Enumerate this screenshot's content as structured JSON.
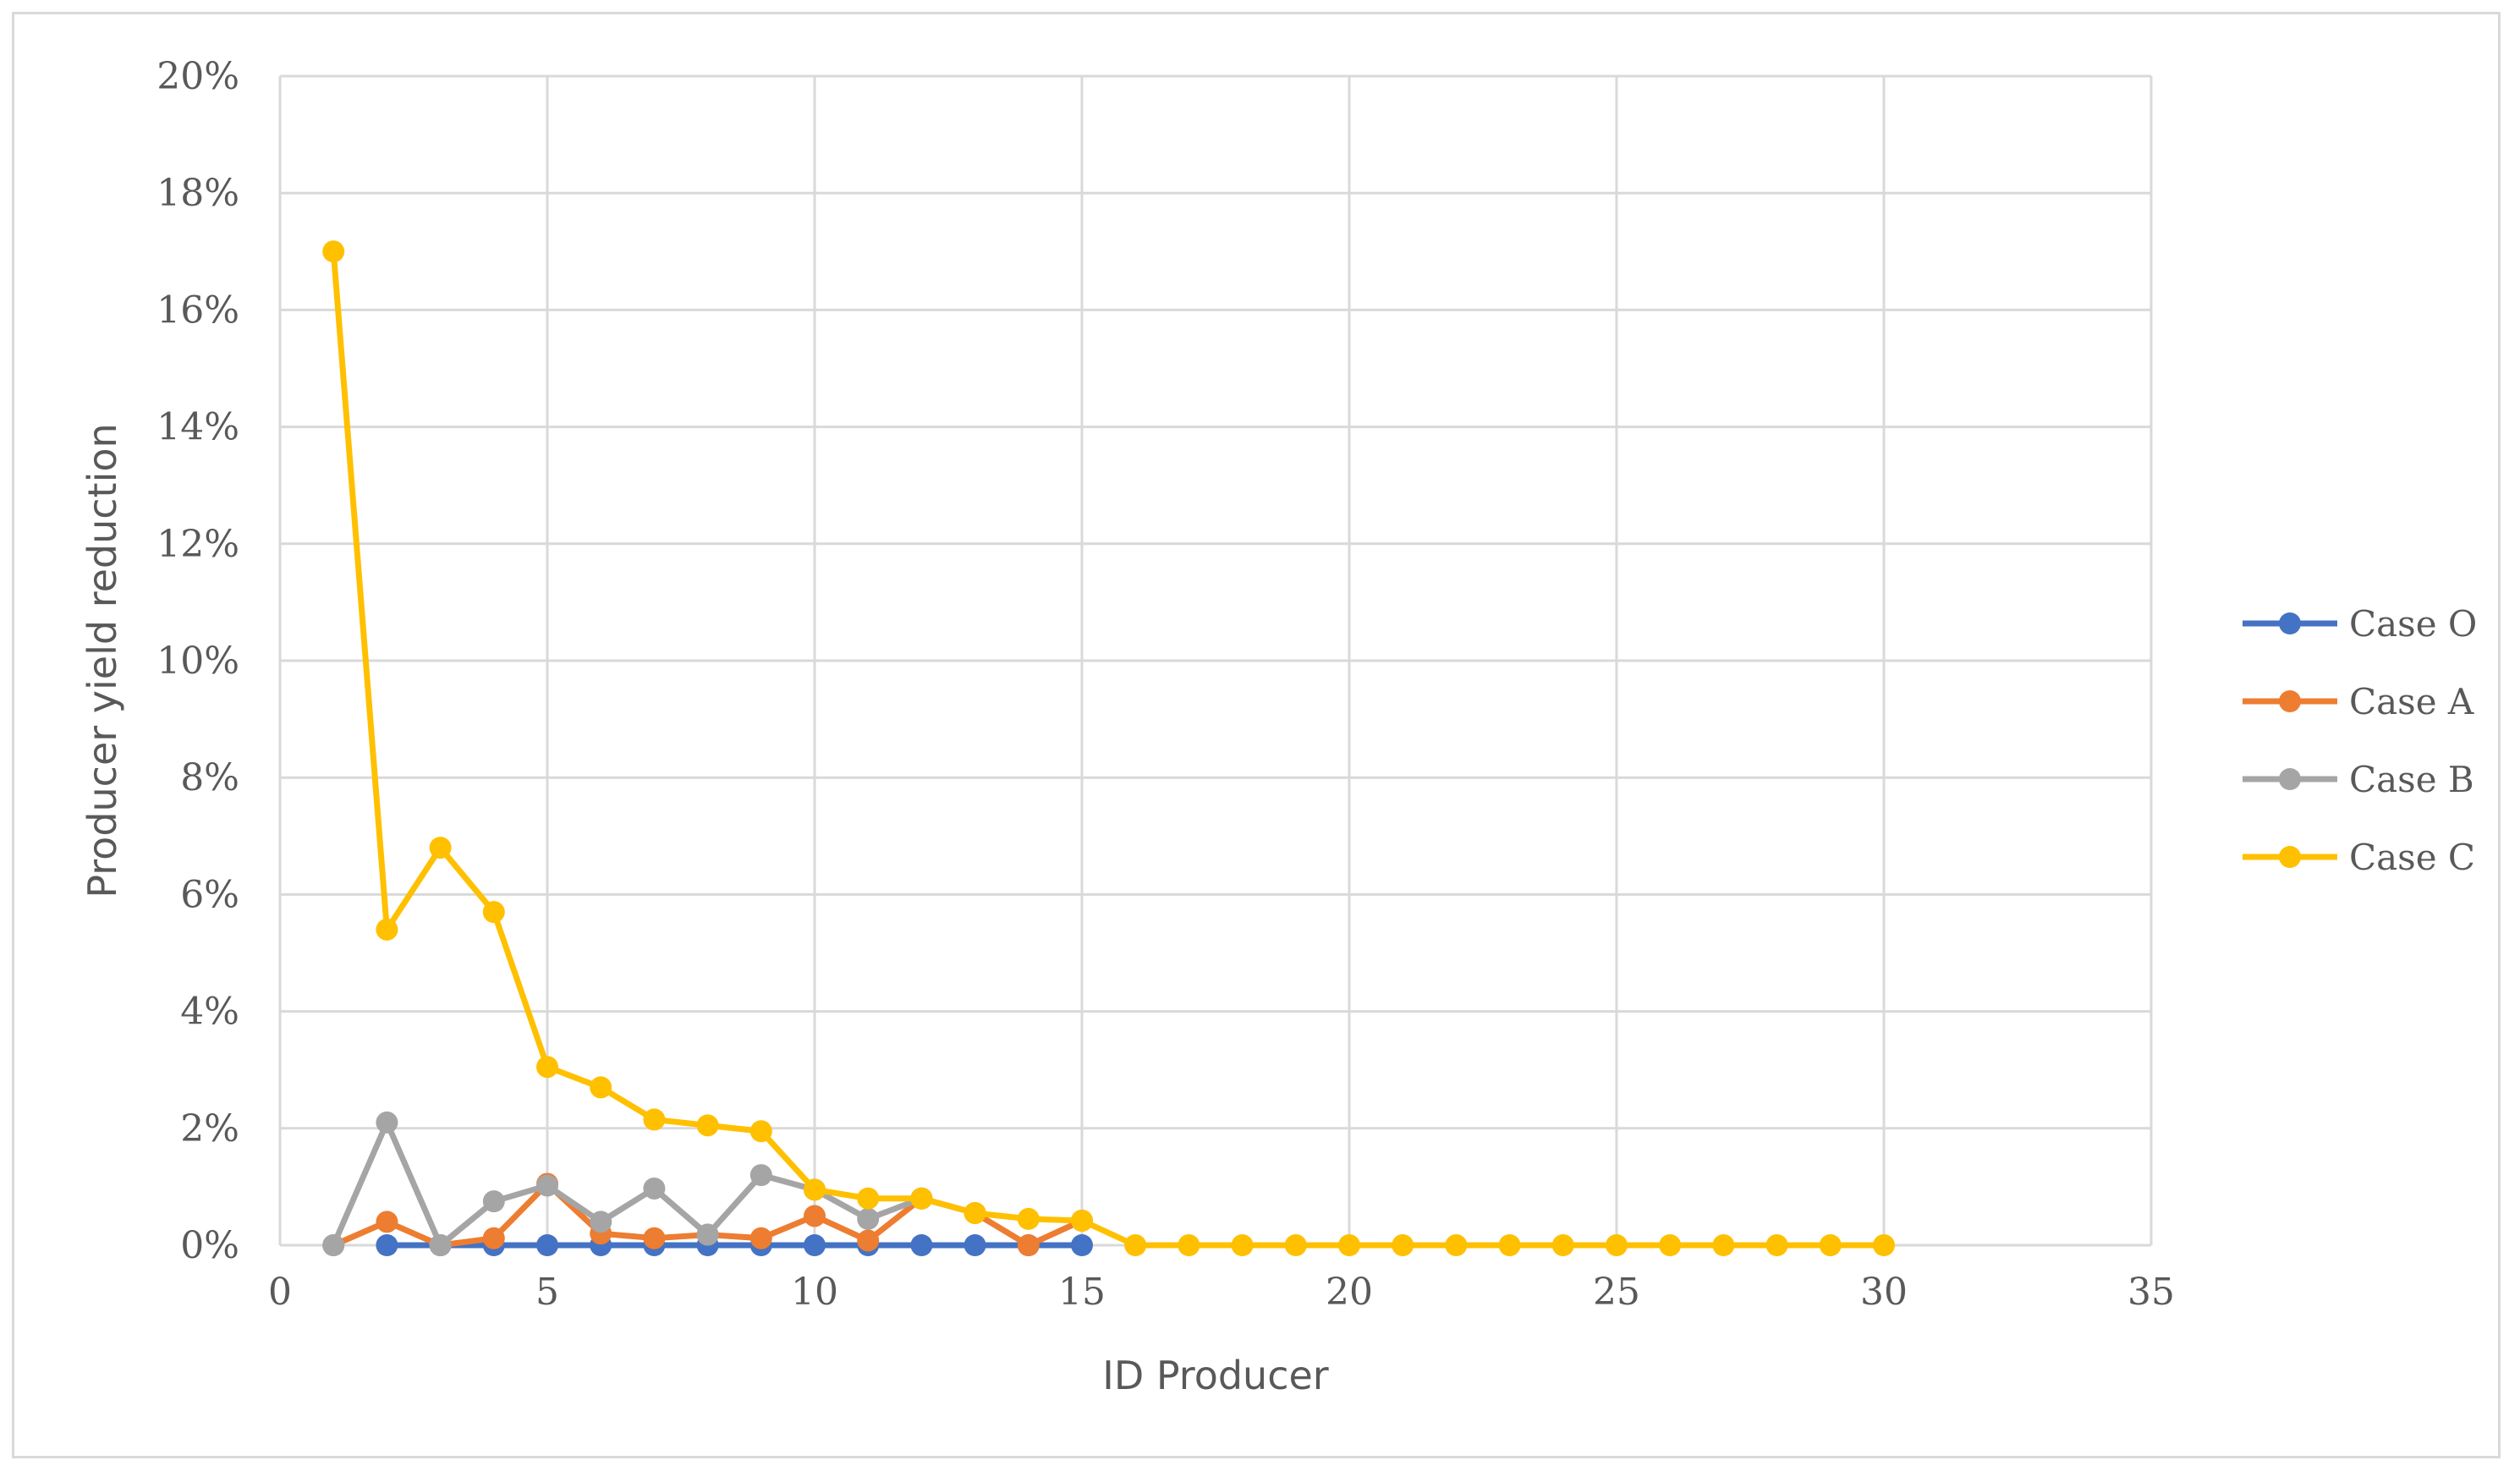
{
  "chart_data": {
    "type": "line",
    "xlabel": "ID Producer",
    "ylabel": "Producer yield reduction",
    "xlim": [
      0,
      35
    ],
    "ylim": [
      0,
      0.2
    ],
    "x_ticks": [
      0,
      5,
      10,
      15,
      20,
      25,
      30,
      35
    ],
    "x_tick_labels": [
      "0",
      "5",
      "10",
      "15",
      "20",
      "25",
      "30",
      "35"
    ],
    "y_ticks": [
      0,
      0.02,
      0.04,
      0.06,
      0.08,
      0.1,
      0.12,
      0.14,
      0.16,
      0.18,
      0.2
    ],
    "y_tick_labels": [
      "0%",
      "2%",
      "4%",
      "6%",
      "8%",
      "10%",
      "12%",
      "14%",
      "16%",
      "18%",
      "20%"
    ],
    "grid": true,
    "legend_position": "right",
    "series": [
      {
        "name": "Case O",
        "color": "#4472c4",
        "x": [
          2,
          3,
          4,
          5,
          6,
          7,
          8,
          9,
          10,
          11,
          12,
          13,
          14,
          15
        ],
        "y": [
          0,
          0,
          0,
          0,
          0,
          0,
          0,
          0,
          0,
          0,
          0,
          0,
          0,
          0
        ]
      },
      {
        "name": "Case A",
        "color": "#ed7d31",
        "x": [
          1,
          2,
          3,
          4,
          5,
          6,
          7,
          8,
          9,
          10,
          11,
          12,
          13,
          14,
          15
        ],
        "y": [
          0,
          0.004,
          0,
          0.0012,
          0.0105,
          0.002,
          0.0012,
          0.0018,
          0.0012,
          0.005,
          0.0008,
          0.008,
          0.0055,
          0,
          0.0042
        ]
      },
      {
        "name": "Case B",
        "color": "#a5a5a5",
        "x": [
          1,
          2,
          3,
          4,
          5,
          6,
          7,
          8,
          9,
          10,
          11,
          12
        ],
        "y": [
          0,
          0.021,
          0,
          0.0075,
          0.0102,
          0.004,
          0.0097,
          0.0018,
          0.012,
          0.0095,
          0.0045,
          0.008
        ]
      },
      {
        "name": "Case C",
        "color": "#ffc000",
        "x": [
          1,
          2,
          3,
          4,
          5,
          6,
          7,
          8,
          9,
          10,
          11,
          12,
          13,
          14,
          15,
          16,
          17,
          18,
          19,
          20,
          21,
          22,
          23,
          24,
          25,
          26,
          27,
          28,
          29,
          30
        ],
        "y": [
          0.17,
          0.054,
          0.068,
          0.057,
          0.0305,
          0.027,
          0.0215,
          0.0205,
          0.0195,
          0.0095,
          0.008,
          0.008,
          0.0055,
          0.0045,
          0.0042,
          0,
          0,
          0,
          0,
          0,
          0,
          0,
          0,
          0,
          0,
          0,
          0,
          0,
          0,
          0
        ]
      }
    ]
  }
}
